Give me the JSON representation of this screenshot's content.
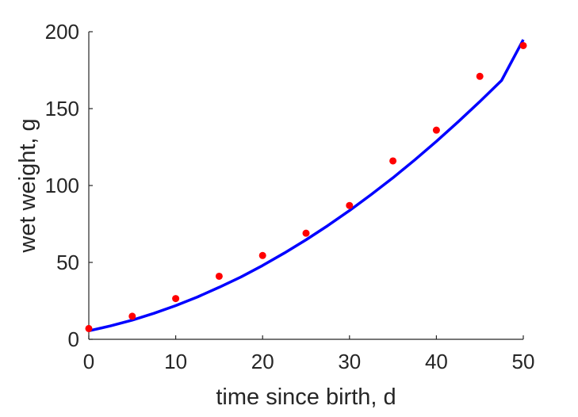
{
  "chart_data": {
    "type": "scatter",
    "title": "",
    "xlabel": "time since birth, d",
    "ylabel": "wet weight, g",
    "xlim": [
      0,
      50
    ],
    "ylim": [
      0,
      200
    ],
    "xticks": [
      0,
      10,
      20,
      30,
      40,
      50
    ],
    "yticks": [
      0,
      50,
      100,
      150,
      200
    ],
    "grid": false,
    "box": false,
    "series": [
      {
        "kind": "points",
        "color": "#ff0000",
        "marker": "dot",
        "x": [
          0,
          5,
          10,
          15,
          20,
          25,
          30,
          35,
          40,
          45,
          50
        ],
        "y": [
          7,
          15,
          26.5,
          41,
          54.5,
          69,
          87,
          116,
          136,
          171,
          191
        ]
      },
      {
        "kind": "line",
        "color": "#0000ff",
        "x": [
          0,
          2.5,
          5,
          7.5,
          10,
          12.5,
          15,
          17.5,
          20,
          22.5,
          25,
          27.5,
          30,
          32.5,
          35,
          37.5,
          40,
          42.5,
          45,
          47.5,
          50
        ],
        "y": [
          5.5,
          8.7,
          12.5,
          16.9,
          21.9,
          27.5,
          33.8,
          40.5,
          48,
          56.1,
          64.7,
          73.9,
          83.7,
          94.1,
          105,
          116.6,
          128.7,
          141.4,
          154.6,
          168.3,
          194.8
        ]
      }
    ]
  }
}
